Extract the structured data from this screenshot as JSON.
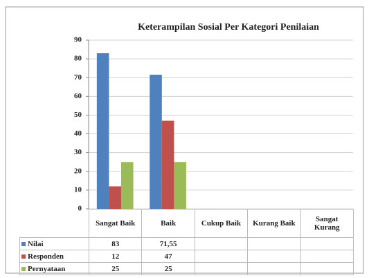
{
  "chart_data": {
    "type": "bar",
    "title": "Keterampilan Sosial Per Kategori Penilaian",
    "categories": [
      "Sangat Baik",
      "Baik",
      "Cukup Baik",
      "Kurang Baik",
      "Sangat Kurang"
    ],
    "series": [
      {
        "name": "Nilai",
        "color": "#4f81bd",
        "values": [
          83,
          71.55,
          null,
          null,
          null
        ],
        "value_labels": [
          "83",
          "71,55",
          null,
          null,
          null
        ]
      },
      {
        "name": "Responden",
        "color": "#c0504d",
        "values": [
          12,
          47,
          null,
          null,
          null
        ]
      },
      {
        "name": "Pernyataan",
        "color": "#9bbb59",
        "values": [
          25,
          25,
          null,
          null,
          null
        ]
      }
    ],
    "ylim": [
      0,
      90
    ],
    "yticks": [
      0,
      10,
      20,
      30,
      40,
      50,
      60,
      70,
      80,
      90
    ],
    "grid": true
  }
}
